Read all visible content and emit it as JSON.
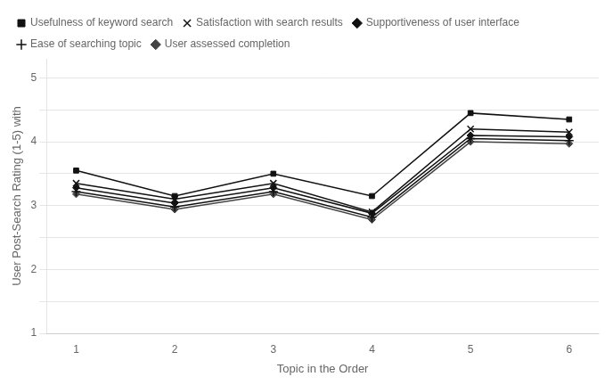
{
  "chart_data": {
    "type": "line",
    "x": [
      1,
      2,
      3,
      4,
      5,
      6
    ],
    "series": [
      {
        "name": "Usefulness of keyword search",
        "values": [
          3.55,
          3.15,
          3.5,
          3.15,
          4.45,
          4.35
        ],
        "marker": "square",
        "color": "#111111"
      },
      {
        "name": "Satisfaction with search results",
        "values": [
          3.35,
          3.1,
          3.35,
          2.9,
          4.2,
          4.15
        ],
        "marker": "x",
        "color": "#111111"
      },
      {
        "name": "Supportiveness of user interface",
        "values": [
          3.28,
          3.04,
          3.28,
          2.88,
          4.1,
          4.08
        ],
        "marker": "diamond",
        "color": "#111111"
      },
      {
        "name": "Ease of searching topic",
        "values": [
          3.22,
          2.98,
          3.22,
          2.82,
          4.05,
          4.02
        ],
        "marker": "plus",
        "color": "#111111"
      },
      {
        "name": "User assessed completion",
        "values": [
          3.18,
          2.94,
          3.18,
          2.78,
          4.0,
          3.97
        ],
        "marker": "diamond",
        "color": "#444444"
      }
    ],
    "x_label": "Topic in the Order",
    "y_label": "User Post-Search Rating (1-5) with",
    "xlim": [
      0.7,
      6.3
    ],
    "xticks": [
      1,
      2,
      3,
      4,
      5,
      6
    ],
    "ylim": [
      1,
      5.3
    ],
    "yticks": [
      1,
      {
        "value": 1.5,
        "label": ""
      },
      2,
      {
        "value": 2.5,
        "label": ""
      },
      3,
      {
        "value": 3.5,
        "label": ""
      },
      4,
      {
        "value": 4.5,
        "label": ""
      },
      5
    ],
    "grid": "y",
    "legend": "upper left"
  }
}
